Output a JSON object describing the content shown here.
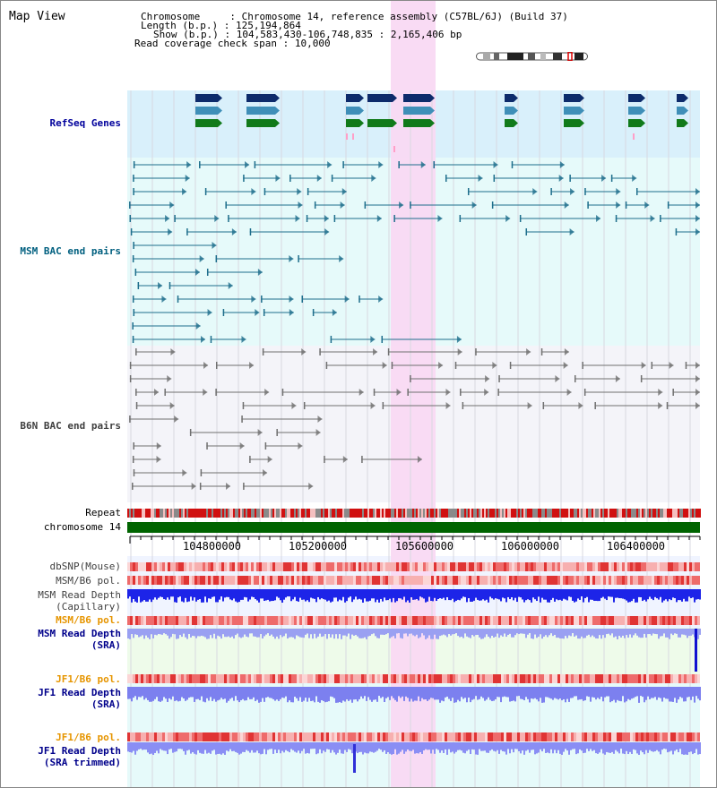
{
  "header": {
    "title": "Map View",
    "chromosome_key": "Chromosome",
    "chromosome_value": "Chromosome 14, reference assembly (C57BL/6J) (Build 37)",
    "length_key": "Length (b.p.)",
    "length_value": "125,194,864",
    "show_key": "Show (b.p.)",
    "show_value": "104,583,430-106,748,835 : 2,165,406 bp",
    "coverage_key": "Read coverage check span",
    "coverage_value": "10,000"
  },
  "tracks": {
    "refseq": "RefSeq Genes",
    "msm_bac": "MSM BAC end pairs",
    "b6n_bac": "B6N BAC end pairs",
    "repeat": "Repeat",
    "chromosome": "chromosome 14",
    "dbsnp": "dbSNP(Mouse)",
    "msm_pol_1": "MSM/B6 pol.",
    "msm_depth_cap_1": "MSM Read Depth",
    "msm_depth_cap_2": "(Capillary)",
    "msm_pol_2": "MSM/B6 pol.",
    "msm_depth_sra_1": "MSM Read Depth",
    "msm_depth_sra_2": "(SRA)",
    "jf1_pol_1": "JF1/B6 pol.",
    "jf1_depth_sra_1": "JF1 Read Depth",
    "jf1_depth_sra_2": "(SRA)",
    "jf1_pol_2": "JF1/B6 pol.",
    "jf1_depth_trim_1": "JF1 Read Depth",
    "jf1_depth_trim_2": "(SRA trimmed)"
  },
  "ruler": {
    "ticks": [
      "104800000",
      "105200000",
      "105600000",
      "106000000",
      "106400000"
    ]
  },
  "colors": {
    "refseq_label": "#00009c",
    "msm_bac_label": "#005f7f",
    "b6n_bac_label": "#3f3f3f",
    "msm_label": "#00008b",
    "orange_label": "#e69500",
    "highlight": "#f9d9f3",
    "chromosome_bar": "#006400"
  }
}
